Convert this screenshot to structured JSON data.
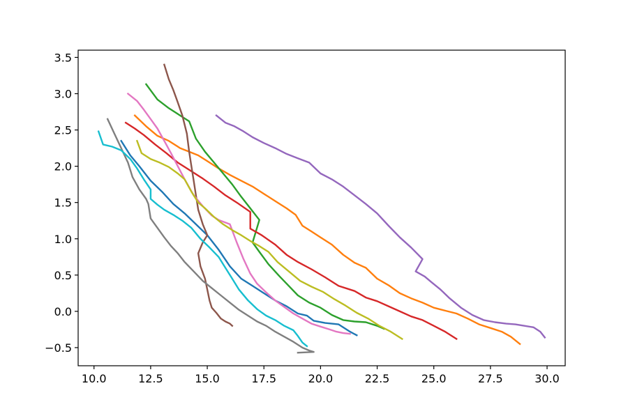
{
  "chart_data": {
    "type": "line",
    "title": "",
    "xlabel": "",
    "ylabel": "",
    "xlim": [
      9.3,
      30.8
    ],
    "ylim": [
      -0.75,
      3.6
    ],
    "xticks": [
      10.0,
      12.5,
      15.0,
      17.5,
      20.0,
      22.5,
      25.0,
      27.5,
      30.0
    ],
    "xtick_labels": [
      "10.0",
      "12.5",
      "15.0",
      "17.5",
      "20.0",
      "22.5",
      "25.0",
      "27.5",
      "30.0"
    ],
    "yticks": [
      -0.5,
      0.0,
      0.5,
      1.0,
      1.5,
      2.0,
      2.5,
      3.0,
      3.5
    ],
    "ytick_labels": [
      "−0.5",
      "0.0",
      "0.5",
      "1.0",
      "1.5",
      "2.0",
      "2.5",
      "3.0",
      "3.5"
    ],
    "grid": false,
    "legend": "none",
    "series": [
      {
        "color": "#1f77b4",
        "points": [
          [
            11.2,
            2.35
          ],
          [
            11.6,
            2.15
          ],
          [
            12.0,
            2.0
          ],
          [
            12.5,
            1.8
          ],
          [
            13.0,
            1.65
          ],
          [
            13.5,
            1.48
          ],
          [
            14.0,
            1.35
          ],
          [
            14.5,
            1.2
          ],
          [
            15.0,
            1.05
          ],
          [
            15.5,
            0.85
          ],
          [
            16.0,
            0.62
          ],
          [
            16.5,
            0.45
          ],
          [
            17.0,
            0.35
          ],
          [
            17.5,
            0.25
          ],
          [
            18.0,
            0.15
          ],
          [
            18.5,
            0.07
          ],
          [
            19.0,
            -0.03
          ],
          [
            19.4,
            -0.06
          ],
          [
            19.7,
            -0.13
          ],
          [
            20.2,
            -0.16
          ],
          [
            20.8,
            -0.18
          ],
          [
            21.3,
            -0.28
          ],
          [
            21.6,
            -0.33
          ]
        ]
      },
      {
        "color": "#ff7f0e",
        "points": [
          [
            11.8,
            2.7
          ],
          [
            12.3,
            2.55
          ],
          [
            12.8,
            2.42
          ],
          [
            13.3,
            2.35
          ],
          [
            13.8,
            2.25
          ],
          [
            14.2,
            2.2
          ],
          [
            14.6,
            2.15
          ],
          [
            15.0,
            2.07
          ],
          [
            15.5,
            1.97
          ],
          [
            16.0,
            1.88
          ],
          [
            16.5,
            1.8
          ],
          [
            17.0,
            1.72
          ],
          [
            17.5,
            1.62
          ],
          [
            18.0,
            1.52
          ],
          [
            18.5,
            1.42
          ],
          [
            18.9,
            1.33
          ],
          [
            19.2,
            1.18
          ],
          [
            19.6,
            1.1
          ],
          [
            20.0,
            1.02
          ],
          [
            20.5,
            0.92
          ],
          [
            21.0,
            0.78
          ],
          [
            21.5,
            0.67
          ],
          [
            22.0,
            0.6
          ],
          [
            22.5,
            0.45
          ],
          [
            23.0,
            0.36
          ],
          [
            23.5,
            0.25
          ],
          [
            24.0,
            0.18
          ],
          [
            24.5,
            0.12
          ],
          [
            25.0,
            0.05
          ],
          [
            25.5,
            0.01
          ],
          [
            26.0,
            -0.03
          ],
          [
            26.5,
            -0.1
          ],
          [
            27.0,
            -0.18
          ],
          [
            27.5,
            -0.23
          ],
          [
            28.0,
            -0.28
          ],
          [
            28.4,
            -0.35
          ],
          [
            28.8,
            -0.45
          ]
        ]
      },
      {
        "color": "#2ca02c",
        "points": [
          [
            12.3,
            3.13
          ],
          [
            12.8,
            2.92
          ],
          [
            13.3,
            2.8
          ],
          [
            13.8,
            2.7
          ],
          [
            14.2,
            2.62
          ],
          [
            14.5,
            2.38
          ],
          [
            14.9,
            2.2
          ],
          [
            15.3,
            2.05
          ],
          [
            15.7,
            1.9
          ],
          [
            16.1,
            1.75
          ],
          [
            16.5,
            1.58
          ],
          [
            16.9,
            1.42
          ],
          [
            17.3,
            1.26
          ],
          [
            17.0,
            0.95
          ],
          [
            17.3,
            0.82
          ],
          [
            17.7,
            0.65
          ],
          [
            18.2,
            0.48
          ],
          [
            18.6,
            0.35
          ],
          [
            19.0,
            0.22
          ],
          [
            19.5,
            0.12
          ],
          [
            20.0,
            0.05
          ],
          [
            20.5,
            -0.05
          ],
          [
            21.0,
            -0.12
          ],
          [
            21.5,
            -0.14
          ],
          [
            22.0,
            -0.15
          ],
          [
            22.5,
            -0.2
          ],
          [
            22.8,
            -0.24
          ]
        ]
      },
      {
        "color": "#d62728",
        "points": [
          [
            11.4,
            2.6
          ],
          [
            11.8,
            2.52
          ],
          [
            12.2,
            2.43
          ],
          [
            12.7,
            2.3
          ],
          [
            13.2,
            2.18
          ],
          [
            13.7,
            2.05
          ],
          [
            14.2,
            1.95
          ],
          [
            14.8,
            1.83
          ],
          [
            15.3,
            1.72
          ],
          [
            15.8,
            1.6
          ],
          [
            16.3,
            1.5
          ],
          [
            16.9,
            1.37
          ],
          [
            16.9,
            1.14
          ],
          [
            17.4,
            1.05
          ],
          [
            18.0,
            0.92
          ],
          [
            18.5,
            0.78
          ],
          [
            19.0,
            0.68
          ],
          [
            19.6,
            0.58
          ],
          [
            20.2,
            0.47
          ],
          [
            20.8,
            0.35
          ],
          [
            21.5,
            0.28
          ],
          [
            22.0,
            0.19
          ],
          [
            22.5,
            0.14
          ],
          [
            23.0,
            0.07
          ],
          [
            23.5,
            0.0
          ],
          [
            24.0,
            -0.07
          ],
          [
            24.5,
            -0.12
          ],
          [
            25.0,
            -0.2
          ],
          [
            25.5,
            -0.28
          ],
          [
            26.0,
            -0.38
          ]
        ]
      },
      {
        "color": "#9467bd",
        "points": [
          [
            15.4,
            2.7
          ],
          [
            15.8,
            2.6
          ],
          [
            16.2,
            2.55
          ],
          [
            16.6,
            2.48
          ],
          [
            17.0,
            2.4
          ],
          [
            17.5,
            2.32
          ],
          [
            18.0,
            2.25
          ],
          [
            18.5,
            2.17
          ],
          [
            19.0,
            2.11
          ],
          [
            19.5,
            2.05
          ],
          [
            20.0,
            1.9
          ],
          [
            20.5,
            1.82
          ],
          [
            21.0,
            1.72
          ],
          [
            21.5,
            1.6
          ],
          [
            22.0,
            1.48
          ],
          [
            22.5,
            1.35
          ],
          [
            23.0,
            1.18
          ],
          [
            23.5,
            1.02
          ],
          [
            24.0,
            0.88
          ],
          [
            24.5,
            0.72
          ],
          [
            24.2,
            0.55
          ],
          [
            24.6,
            0.48
          ],
          [
            24.9,
            0.4
          ],
          [
            25.3,
            0.3
          ],
          [
            25.7,
            0.18
          ],
          [
            26.2,
            0.05
          ],
          [
            26.7,
            -0.05
          ],
          [
            27.2,
            -0.12
          ],
          [
            27.7,
            -0.15
          ],
          [
            28.2,
            -0.17
          ],
          [
            28.6,
            -0.18
          ],
          [
            29.0,
            -0.2
          ],
          [
            29.4,
            -0.22
          ],
          [
            29.7,
            -0.28
          ],
          [
            29.9,
            -0.36
          ]
        ]
      },
      {
        "color": "#8c564b",
        "points": [
          [
            13.1,
            3.4
          ],
          [
            13.3,
            3.2
          ],
          [
            13.5,
            3.05
          ],
          [
            13.7,
            2.88
          ],
          [
            13.9,
            2.7
          ],
          [
            14.1,
            2.45
          ],
          [
            14.2,
            2.2
          ],
          [
            14.3,
            2.0
          ],
          [
            14.4,
            1.8
          ],
          [
            14.5,
            1.6
          ],
          [
            14.6,
            1.4
          ],
          [
            14.8,
            1.2
          ],
          [
            15.0,
            1.05
          ],
          [
            14.8,
            0.95
          ],
          [
            14.6,
            0.8
          ],
          [
            14.7,
            0.62
          ],
          [
            14.9,
            0.45
          ],
          [
            15.0,
            0.3
          ],
          [
            15.1,
            0.15
          ],
          [
            15.2,
            0.05
          ],
          [
            15.4,
            -0.02
          ],
          [
            15.6,
            -0.1
          ],
          [
            15.8,
            -0.14
          ],
          [
            16.0,
            -0.17
          ],
          [
            16.1,
            -0.2
          ]
        ]
      },
      {
        "color": "#e377c2",
        "points": [
          [
            11.5,
            3.0
          ],
          [
            11.9,
            2.9
          ],
          [
            12.2,
            2.78
          ],
          [
            12.5,
            2.65
          ],
          [
            12.8,
            2.52
          ],
          [
            13.1,
            2.35
          ],
          [
            13.4,
            2.18
          ],
          [
            13.7,
            2.0
          ],
          [
            14.0,
            1.82
          ],
          [
            14.4,
            1.6
          ],
          [
            14.8,
            1.45
          ],
          [
            15.2,
            1.32
          ],
          [
            15.5,
            1.26
          ],
          [
            16.0,
            1.2
          ],
          [
            16.3,
            0.95
          ],
          [
            16.6,
            0.72
          ],
          [
            16.9,
            0.52
          ],
          [
            17.2,
            0.38
          ],
          [
            17.6,
            0.26
          ],
          [
            18.0,
            0.15
          ],
          [
            18.4,
            0.06
          ],
          [
            18.8,
            -0.03
          ],
          [
            19.2,
            -0.1
          ],
          [
            19.6,
            -0.17
          ],
          [
            20.0,
            -0.21
          ],
          [
            20.4,
            -0.25
          ],
          [
            20.7,
            -0.28
          ],
          [
            21.0,
            -0.3
          ],
          [
            21.3,
            -0.31
          ]
        ]
      },
      {
        "color": "#7f7f7f",
        "points": [
          [
            10.6,
            2.65
          ],
          [
            10.9,
            2.45
          ],
          [
            11.2,
            2.25
          ],
          [
            11.5,
            2.05
          ],
          [
            11.7,
            1.85
          ],
          [
            12.0,
            1.68
          ],
          [
            12.3,
            1.55
          ],
          [
            12.4,
            1.48
          ],
          [
            12.5,
            1.28
          ],
          [
            12.8,
            1.15
          ],
          [
            13.1,
            1.02
          ],
          [
            13.4,
            0.9
          ],
          [
            13.7,
            0.8
          ],
          [
            14.0,
            0.68
          ],
          [
            14.4,
            0.55
          ],
          [
            14.8,
            0.42
          ],
          [
            15.2,
            0.32
          ],
          [
            15.6,
            0.22
          ],
          [
            16.0,
            0.12
          ],
          [
            16.4,
            0.02
          ],
          [
            16.8,
            -0.06
          ],
          [
            17.2,
            -0.14
          ],
          [
            17.6,
            -0.2
          ],
          [
            18.0,
            -0.28
          ],
          [
            18.4,
            -0.35
          ],
          [
            18.8,
            -0.42
          ],
          [
            19.2,
            -0.5
          ],
          [
            19.5,
            -0.54
          ],
          [
            19.7,
            -0.56
          ],
          [
            19.0,
            -0.57
          ]
        ]
      },
      {
        "color": "#bcbd22",
        "points": [
          [
            11.9,
            2.35
          ],
          [
            12.1,
            2.18
          ],
          [
            12.5,
            2.1
          ],
          [
            12.9,
            2.05
          ],
          [
            13.3,
            1.99
          ],
          [
            13.7,
            1.9
          ],
          [
            14.0,
            1.82
          ],
          [
            14.3,
            1.65
          ],
          [
            14.6,
            1.5
          ],
          [
            14.9,
            1.42
          ],
          [
            15.3,
            1.3
          ],
          [
            15.7,
            1.2
          ],
          [
            16.1,
            1.12
          ],
          [
            16.5,
            1.05
          ],
          [
            16.9,
            0.97
          ],
          [
            17.3,
            0.9
          ],
          [
            17.7,
            0.82
          ],
          [
            18.1,
            0.68
          ],
          [
            18.6,
            0.55
          ],
          [
            19.1,
            0.42
          ],
          [
            19.6,
            0.34
          ],
          [
            20.1,
            0.27
          ],
          [
            20.6,
            0.17
          ],
          [
            21.1,
            0.08
          ],
          [
            21.6,
            -0.02
          ],
          [
            22.1,
            -0.1
          ],
          [
            22.6,
            -0.2
          ],
          [
            23.1,
            -0.28
          ],
          [
            23.6,
            -0.38
          ]
        ]
      },
      {
        "color": "#17becf",
        "points": [
          [
            10.2,
            2.48
          ],
          [
            10.4,
            2.3
          ],
          [
            10.8,
            2.27
          ],
          [
            11.2,
            2.22
          ],
          [
            11.6,
            2.1
          ],
          [
            11.9,
            1.97
          ],
          [
            12.2,
            1.82
          ],
          [
            12.5,
            1.68
          ],
          [
            12.5,
            1.55
          ],
          [
            12.8,
            1.47
          ],
          [
            13.1,
            1.4
          ],
          [
            13.5,
            1.33
          ],
          [
            13.9,
            1.25
          ],
          [
            14.3,
            1.15
          ],
          [
            14.7,
            1.0
          ],
          [
            15.1,
            0.88
          ],
          [
            15.5,
            0.75
          ],
          [
            15.8,
            0.6
          ],
          [
            16.1,
            0.45
          ],
          [
            16.4,
            0.3
          ],
          [
            16.8,
            0.15
          ],
          [
            17.2,
            0.03
          ],
          [
            17.6,
            -0.06
          ],
          [
            18.0,
            -0.12
          ],
          [
            18.4,
            -0.2
          ],
          [
            18.8,
            -0.26
          ],
          [
            19.0,
            -0.34
          ],
          [
            19.2,
            -0.43
          ],
          [
            19.4,
            -0.48
          ]
        ]
      }
    ]
  }
}
